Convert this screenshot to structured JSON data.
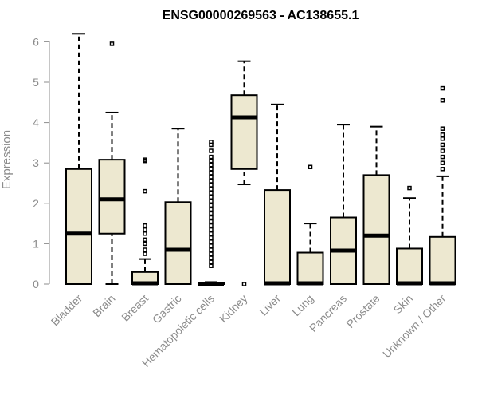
{
  "chart_data": {
    "type": "boxplot",
    "title": "ENSG00000269563 - AC138655.1",
    "ylabel": "Expression",
    "xlabel": "",
    "ylim": [
      0,
      6.3
    ],
    "yticks": [
      0,
      1,
      2,
      3,
      4,
      5,
      6
    ],
    "grid": false,
    "box_color": "#ede8d0",
    "categories": [
      "Bladder",
      "Brain",
      "Breast",
      "Gastric",
      "Hematopoietic cells",
      "Kidney",
      "Liver",
      "Lung",
      "Pancreas",
      "Prostate",
      "Skin",
      "Unknown / Other"
    ],
    "boxes": [
      {
        "min": 0,
        "q1": 0,
        "median": 1.25,
        "q3": 2.85,
        "max": 6.2,
        "outliers": []
      },
      {
        "min": 0,
        "q1": 1.25,
        "median": 2.1,
        "q3": 3.08,
        "max": 4.25,
        "outliers": [
          5.95
        ]
      },
      {
        "min": 0,
        "q1": 0,
        "median": 0.02,
        "q3": 0.3,
        "max": 0.62,
        "outliers": [
          0.75,
          0.85,
          1.0,
          1.1,
          1.25,
          1.35,
          1.45,
          2.3,
          3.05,
          3.08
        ]
      },
      {
        "min": 0,
        "q1": 0,
        "median": 0.85,
        "q3": 2.03,
        "max": 3.85,
        "outliers": []
      },
      {
        "min": 0,
        "q1": 0,
        "median": 0.0,
        "q3": 0.02,
        "max": 0.05,
        "outliers": [
          0.45,
          0.55,
          0.65,
          0.75,
          0.85,
          0.95,
          1.05,
          1.15,
          1.25,
          1.35,
          1.45,
          1.55,
          1.65,
          1.75,
          1.85,
          1.95,
          2.05,
          2.15,
          2.25,
          2.35,
          2.45,
          2.55,
          2.65,
          2.75,
          2.85,
          2.95,
          3.05,
          3.15,
          3.3,
          3.45,
          3.52
        ]
      },
      {
        "min": 2.47,
        "q1": 2.85,
        "median": 4.13,
        "q3": 4.68,
        "max": 5.52,
        "outliers": [
          0.0
        ]
      },
      {
        "min": 0,
        "q1": 0,
        "median": 0.02,
        "q3": 2.33,
        "max": 4.45,
        "outliers": []
      },
      {
        "min": 0,
        "q1": 0,
        "median": 0.02,
        "q3": 0.78,
        "max": 1.5,
        "outliers": [
          2.9
        ]
      },
      {
        "min": 0,
        "q1": 0,
        "median": 0.83,
        "q3": 1.65,
        "max": 3.95,
        "outliers": []
      },
      {
        "min": 0,
        "q1": 0,
        "median": 1.2,
        "q3": 2.7,
        "max": 3.9,
        "outliers": []
      },
      {
        "min": 0,
        "q1": 0,
        "median": 0.02,
        "q3": 0.88,
        "max": 2.13,
        "outliers": [
          2.38
        ]
      },
      {
        "min": 0,
        "q1": 0,
        "median": 0.02,
        "q3": 1.17,
        "max": 2.67,
        "outliers": [
          2.85,
          3.0,
          3.15,
          3.3,
          3.45,
          3.6,
          3.7,
          3.85,
          4.55,
          4.85
        ]
      }
    ]
  }
}
